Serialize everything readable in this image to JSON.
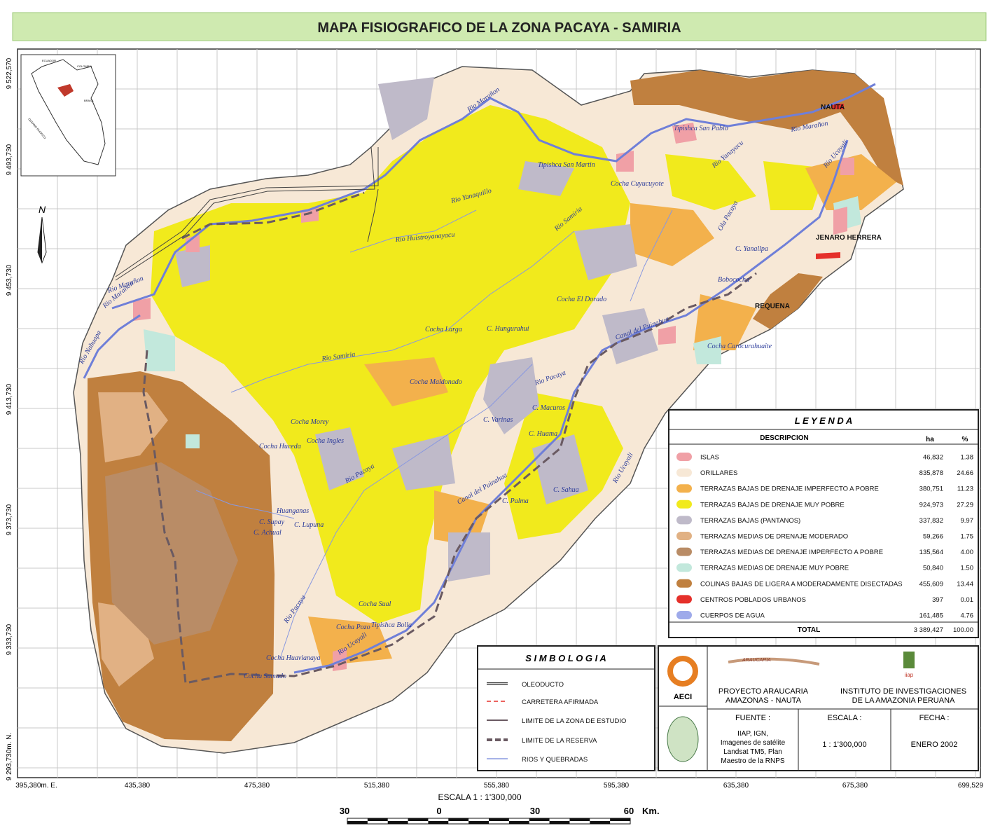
{
  "title": "MAPA FISIOGRAFICO DE LA ZONA PACAYA - SAMIRIA",
  "grid": {
    "x_labels": [
      "395,380m. E.",
      "435,380",
      "475,380",
      "515,380",
      "555,380",
      "595,380",
      "635,380",
      "675,380",
      "699,529"
    ],
    "y_labels": [
      "9 522,570",
      "9 493,730",
      "9 453,730",
      "9 413,730",
      "9 373,730",
      "9 333,730",
      "9 293,730m. N."
    ]
  },
  "north": "N",
  "inset": [
    "ECUADOR",
    "COLOMBIA",
    "BRASIL",
    "OCEANO PACIFICO"
  ],
  "places": [
    "Rio Marañon",
    "Tipishca San Pablo",
    "NAUTA",
    "Rio Marañon",
    "Rio Yanayacu",
    "Tipishca San Martin",
    "Cocha Cuyucuyote",
    "Rio Yanaquillo",
    "Rio Huistroyanayacu",
    "Rio Samiria",
    "Rio Ucayali",
    "Ola Pacaya",
    "C. Yanallpa",
    "JENARO HERRERA",
    "Bobococha",
    "REQUENA",
    "Cocha El Dorado",
    "Canal del Puinahua",
    "Cocha Carocurahuaite",
    "Cocha Larga",
    "C. Hungurahui",
    "Rio Samiria",
    "Cocha Maldonado",
    "Rio Pacaya",
    "C. Macuros",
    "C. Varinas",
    "C. Huama",
    "Cocha Morey",
    "Cocha Huceda",
    "Cocha Ingles",
    "Rio Pacaya",
    "Canal del Puinahua",
    "C. Sahua",
    "C. Palma",
    "Huanganas",
    "C. Supay",
    "C. Lupuna",
    "C. Achual",
    "Cocha Sual",
    "Cocha Pozo",
    "Tipishca Bolla",
    "Rio Pacaya",
    "Rio Ucayali",
    "Cocha Huavianaya",
    "Cocha Sumado",
    "Rio Marañon",
    "Rio Nahuapa",
    "Rio Ucayali",
    "Rio Marañon"
  ],
  "legend": {
    "title": "L E Y E N D A",
    "headers": [
      "DESCRIPCION",
      "ha",
      "%"
    ],
    "rows": [
      {
        "name": "ISLAS",
        "ha": "46,832",
        "pct": "1.38",
        "color": "#f0a0a6"
      },
      {
        "name": "ORILLARES",
        "ha": "835,878",
        "pct": "24.66",
        "color": "#f7e8d6"
      },
      {
        "name": "TERRAZAS BAJAS DE DRENAJE IMPERFECTO A POBRE",
        "ha": "380,751",
        "pct": "11.23",
        "color": "#f3b14c"
      },
      {
        "name": "TERRAZAS BAJAS DE DRENAJE MUY POBRE",
        "ha": "924,973",
        "pct": "27.29",
        "color": "#f1ea1c"
      },
      {
        "name": "TERRAZAS BAJAS (PANTANOS)",
        "ha": "337,832",
        "pct": "9.97",
        "color": "#bfbac9"
      },
      {
        "name": "TERRAZAS MEDIAS DE DRENAJE MODERADO",
        "ha": "59,266",
        "pct": "1.75",
        "color": "#e1b184"
      },
      {
        "name": "TERRAZAS MEDIAS DE DRENAJE IMPERFECTO A POBRE",
        "ha": "135,564",
        "pct": "4.00",
        "color": "#b98c66"
      },
      {
        "name": "TERRAZAS MEDIAS DE DRENAJE MUY POBRE",
        "ha": "50,840",
        "pct": "1.50",
        "color": "#c2e8dc"
      },
      {
        "name": "COLINAS BAJAS DE LIGERA A MODERADAMENTE DISECTADAS",
        "ha": "455,609",
        "pct": "13.44",
        "color": "#c0803f"
      },
      {
        "name": "CENTROS POBLADOS URBANOS",
        "ha": "397",
        "pct": "0.01",
        "color": "#e5302a"
      },
      {
        "name": "CUERPOS DE AGUA",
        "ha": "161,485",
        "pct": "4.76",
        "color": "#9eaaea"
      }
    ],
    "total": {
      "name": "TOTAL",
      "ha": "3 389,427",
      "pct": "100.00"
    }
  },
  "simbologia": {
    "title": "S I M B O L O G I A",
    "items": [
      "OLEODUCTO",
      "CARRETERA AFIRMADA",
      "LIMITE DE LA ZONA DE ESTUDIO",
      "LIMITE DE LA RESERVA",
      "RIOS Y QUEBRADAS"
    ]
  },
  "credits": {
    "aeci": "AECI",
    "araucaria": "ARAUCARIA",
    "project": [
      "PROYECTO ARAUCARIA",
      "AMAZONAS - NAUTA"
    ],
    "iiap": "iiap",
    "institute": [
      "INSTITUTO DE INVESTIGACIONES",
      "DE LA AMAZONIA PERUANA"
    ],
    "fuente_label": "FUENTE :",
    "fuente": [
      "IIAP, IGN,",
      "Imagenes de satélite",
      "Landsat TM5, Plan",
      "Maestro de la RNPS"
    ],
    "escala_label": "ESCALA :",
    "escala": "1 :  1'300,000",
    "fecha_label": "FECHA :",
    "fecha": "ENERO 2002"
  },
  "scale_bar": {
    "title": "ESCALA 1 : 1'300,000",
    "labels": [
      "30",
      "0",
      "30",
      "60",
      "Km."
    ]
  }
}
